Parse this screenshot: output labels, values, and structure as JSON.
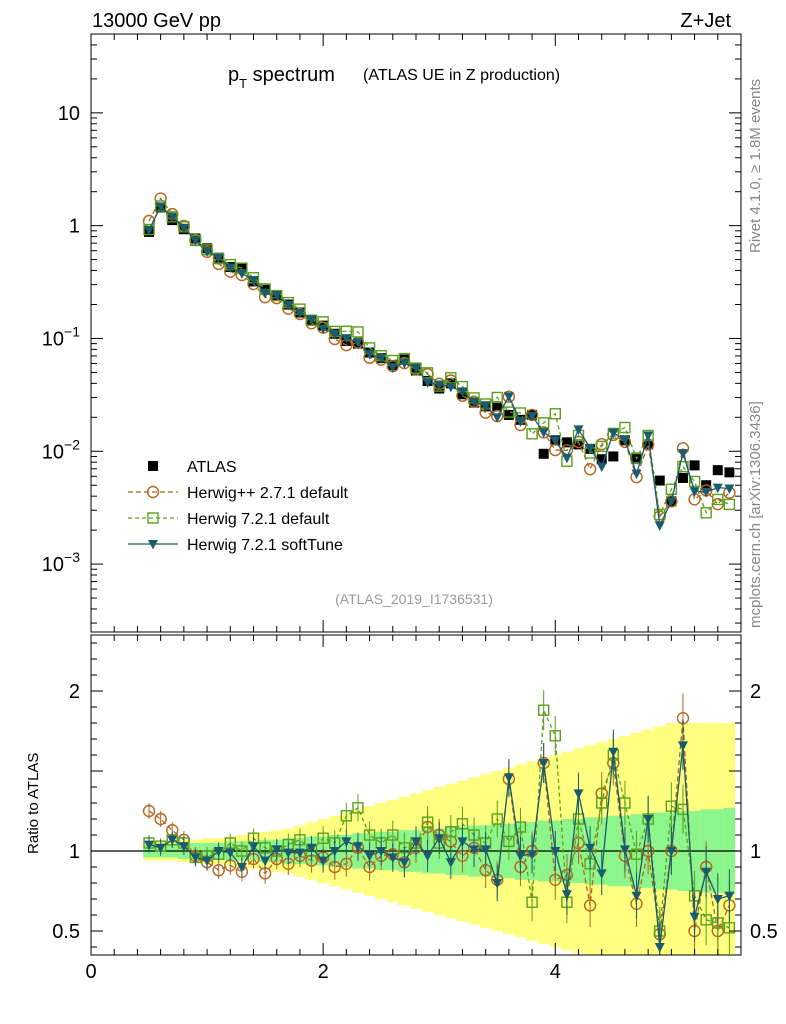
{
  "header": {
    "left_label": "13000 GeV pp",
    "right_label": "Z+Jet",
    "side_label_top": "Rivet 4.1.0, ≥ 1.8M events",
    "side_label_bottom": "mcplots.cern.ch [arXiv:1306.3436]",
    "analysis_id": "(ATLAS_2019_I1736531)"
  },
  "chart_data": {
    "type": "scatter",
    "title_main": "p",
    "title_sub": "T",
    "title_word": "spectrum",
    "title_note": "(ATLAS UE in Z production)",
    "xlabel": "",
    "ylabel_ratio": "Ratio to ATLAS",
    "xlim": [
      0,
      5.6
    ],
    "ylim_main": [
      0.00025,
      50
    ],
    "ylim_ratio": [
      0.35,
      2.35
    ],
    "y_scale_main": "log",
    "x_ticks": [
      {
        "value": 0,
        "label": "0"
      },
      {
        "value": 2,
        "label": "2"
      },
      {
        "value": 4,
        "label": "4"
      }
    ],
    "main_ticks": [
      {
        "value": 10,
        "base": "10",
        "exp": ""
      },
      {
        "value": 1,
        "base": "1",
        "exp": ""
      },
      {
        "value": 0.1,
        "base": "10",
        "exp": "−1"
      },
      {
        "value": 0.01,
        "base": "10",
        "exp": "−2"
      },
      {
        "value": 0.001,
        "base": "10",
        "exp": "−3"
      }
    ],
    "ratio_ticks": [
      {
        "value": 2,
        "label": "2"
      },
      {
        "value": 1,
        "label": "1"
      },
      {
        "value": 0.5,
        "label": "0.5"
      }
    ],
    "legend_position": "bottom-left",
    "x": [
      0.5,
      0.6,
      0.7,
      0.8,
      0.9,
      1.0,
      1.1,
      1.2,
      1.3,
      1.4,
      1.5,
      1.6,
      1.7,
      1.8,
      1.9,
      2.0,
      2.1,
      2.2,
      2.3,
      2.4,
      2.5,
      2.6,
      2.7,
      2.8,
      2.9,
      3.0,
      3.1,
      3.2,
      3.3,
      3.4,
      3.5,
      3.6,
      3.7,
      3.8,
      3.9,
      4.0,
      4.1,
      4.2,
      4.3,
      4.4,
      4.5,
      4.6,
      4.7,
      4.8,
      4.9,
      5.0,
      5.1,
      5.2,
      5.3,
      5.4,
      5.5
    ],
    "atlas_values": [
      0.88,
      1.45,
      1.12,
      0.93,
      0.77,
      0.63,
      0.52,
      0.43,
      0.42,
      0.32,
      0.27,
      0.24,
      0.2,
      0.17,
      0.145,
      0.13,
      0.11,
      0.095,
      0.09,
      0.075,
      0.067,
      0.058,
      0.065,
      0.052,
      0.042,
      0.036,
      0.04,
      0.032,
      0.027,
      0.025,
      0.025,
      0.021,
      0.019,
      0.021,
      0.0095,
      0.0125,
      0.012,
      0.0115,
      0.0105,
      0.0085,
      0.009,
      0.0125,
      0.0088,
      0.0115,
      0.0055,
      0.0036,
      0.0058,
      0.0075,
      0.005,
      0.0068,
      0.0065
    ],
    "band_inner": [
      0.04,
      0.04,
      0.04,
      0.05,
      0.05,
      0.05,
      0.05,
      0.06,
      0.06,
      0.06,
      0.07,
      0.07,
      0.08,
      0.08,
      0.09,
      0.09,
      0.1,
      0.1,
      0.11,
      0.11,
      0.12,
      0.12,
      0.13,
      0.13,
      0.14,
      0.14,
      0.15,
      0.15,
      0.16,
      0.16,
      0.17,
      0.17,
      0.18,
      0.18,
      0.19,
      0.19,
      0.2,
      0.2,
      0.21,
      0.21,
      0.22,
      0.22,
      0.23,
      0.23,
      0.24,
      0.24,
      0.25,
      0.25,
      0.26,
      0.26,
      0.27
    ],
    "band_outer": [
      0.06,
      0.06,
      0.06,
      0.07,
      0.07,
      0.08,
      0.08,
      0.09,
      0.1,
      0.11,
      0.12,
      0.13,
      0.14,
      0.16,
      0.18,
      0.2,
      0.22,
      0.24,
      0.26,
      0.28,
      0.3,
      0.32,
      0.34,
      0.36,
      0.38,
      0.4,
      0.42,
      0.44,
      0.46,
      0.48,
      0.5,
      0.52,
      0.54,
      0.56,
      0.58,
      0.6,
      0.62,
      0.64,
      0.66,
      0.68,
      0.7,
      0.72,
      0.74,
      0.76,
      0.78,
      0.8,
      0.8,
      0.8,
      0.8,
      0.8,
      0.8
    ],
    "series": [
      {
        "name": "ATLAS",
        "color": "#000000",
        "marker": "square-filled",
        "ratio": [
          1,
          1,
          1,
          1,
          1,
          1,
          1,
          1,
          1,
          1,
          1,
          1,
          1,
          1,
          1,
          1,
          1,
          1,
          1,
          1,
          1,
          1,
          1,
          1,
          1,
          1,
          1,
          1,
          1,
          1,
          1,
          1,
          1,
          1,
          1,
          1,
          1,
          1,
          1,
          1,
          1,
          1,
          1,
          1,
          1,
          1,
          1,
          1,
          1,
          1,
          1
        ]
      },
      {
        "name": "Herwig++ 2.7.1 default",
        "color": "#b5651d",
        "marker": "circle-open",
        "dash": "5,3",
        "ratio": [
          1.25,
          1.2,
          1.13,
          1.07,
          0.97,
          0.93,
          0.88,
          0.91,
          0.87,
          0.95,
          0.86,
          0.95,
          0.92,
          0.97,
          0.94,
          0.96,
          0.9,
          0.92,
          1.02,
          0.9,
          0.97,
          0.98,
          0.93,
          1.02,
          1.15,
          1.1,
          1.06,
          0.97,
          1.02,
          0.88,
          0.82,
          1.45,
          0.9,
          1.0,
          1.55,
          0.82,
          0.85,
          1.05,
          0.66,
          1.36,
          1.55,
          0.97,
          0.67,
          1.0,
          0.48,
          1.0,
          1.83,
          0.5,
          0.9,
          0.5,
          0.66
        ]
      },
      {
        "name": "Herwig 7.2.1 default",
        "color": "#5aa01e",
        "marker": "square-open",
        "dash": "4,3",
        "ratio": [
          1.05,
          1.03,
          1.07,
          1.05,
          0.96,
          0.97,
          0.98,
          1.05,
          1.0,
          1.08,
          1.02,
          1.0,
          1.04,
          1.07,
          1.0,
          1.08,
          1.05,
          1.22,
          1.27,
          1.1,
          1.05,
          1.1,
          1.02,
          1.05,
          1.18,
          1.05,
          1.12,
          1.17,
          1.1,
          1.05,
          1.2,
          1.06,
          1.15,
          0.68,
          1.88,
          1.72,
          0.68,
          1.2,
          0.92,
          1.3,
          1.6,
          1.3,
          0.98,
          1.2,
          0.5,
          1.28,
          1.26,
          0.72,
          0.57,
          0.55,
          0.52
        ]
      },
      {
        "name": "Herwig 7.2.1 softTune",
        "color": "#1a5c6e",
        "marker": "triangle-down-filled",
        "ratio": [
          1.04,
          1.02,
          1.07,
          1.03,
          0.96,
          0.94,
          1.0,
          0.99,
          0.9,
          1.03,
          0.94,
          1.01,
          0.99,
          0.99,
          1.02,
          0.94,
          1.0,
          1.06,
          1.03,
          0.97,
          1.0,
          0.96,
          0.93,
          1.06,
          0.97,
          1.08,
          0.93,
          1.06,
          1.01,
          1.01,
          0.8,
          1.46,
          0.97,
          0.98,
          1.55,
          1.0,
          0.73,
          1.36,
          1.02,
          0.86,
          1.62,
          1.01,
          0.72,
          1.2,
          0.4,
          1.0,
          1.66,
          0.59,
          0.87,
          0.7,
          0.72
        ]
      }
    ]
  }
}
